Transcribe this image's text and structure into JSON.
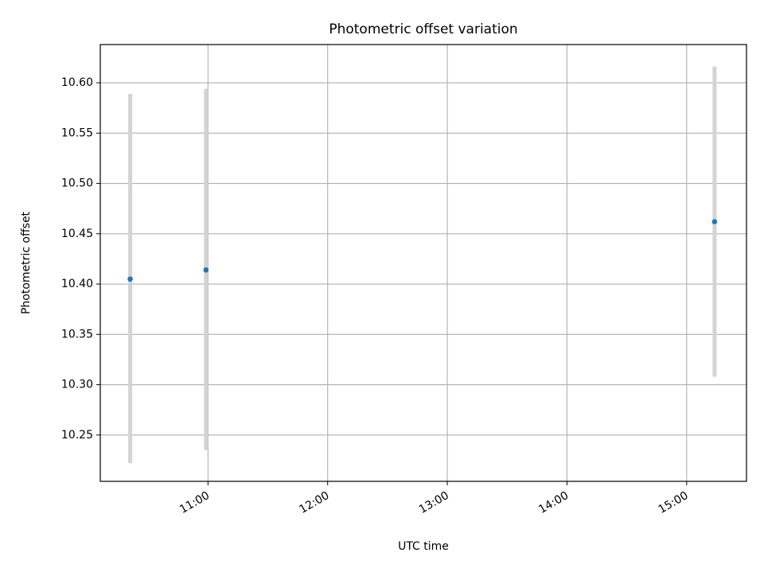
{
  "chart_data": {
    "type": "scatter",
    "title": "Photometric offset variation",
    "xlabel": "UTC time",
    "ylabel": "Photometric offset",
    "x_axis_type": "time",
    "xlim": [
      "10:06",
      "15:30"
    ],
    "ylim": [
      10.204,
      10.638
    ],
    "x_ticks": [
      "11:00",
      "12:00",
      "13:00",
      "14:00",
      "15:00"
    ],
    "y_ticks": [
      "10.25",
      "10.30",
      "10.35",
      "10.40",
      "10.45",
      "10.50",
      "10.55",
      "10.60"
    ],
    "grid": true,
    "series": [
      {
        "points": [
          {
            "x": "10:21",
            "y": 10.405,
            "y_low": 10.222,
            "y_high": 10.589
          },
          {
            "x": "10:59",
            "y": 10.414,
            "y_low": 10.235,
            "y_high": 10.594
          },
          {
            "x": "15:14",
            "y": 10.462,
            "y_low": 10.308,
            "y_high": 10.616
          }
        ]
      }
    ],
    "colors": {
      "marker": "#1f77b4",
      "errorbar": "#d3d3d3",
      "grid": "#b0b0b0",
      "axes": "#000000"
    }
  }
}
